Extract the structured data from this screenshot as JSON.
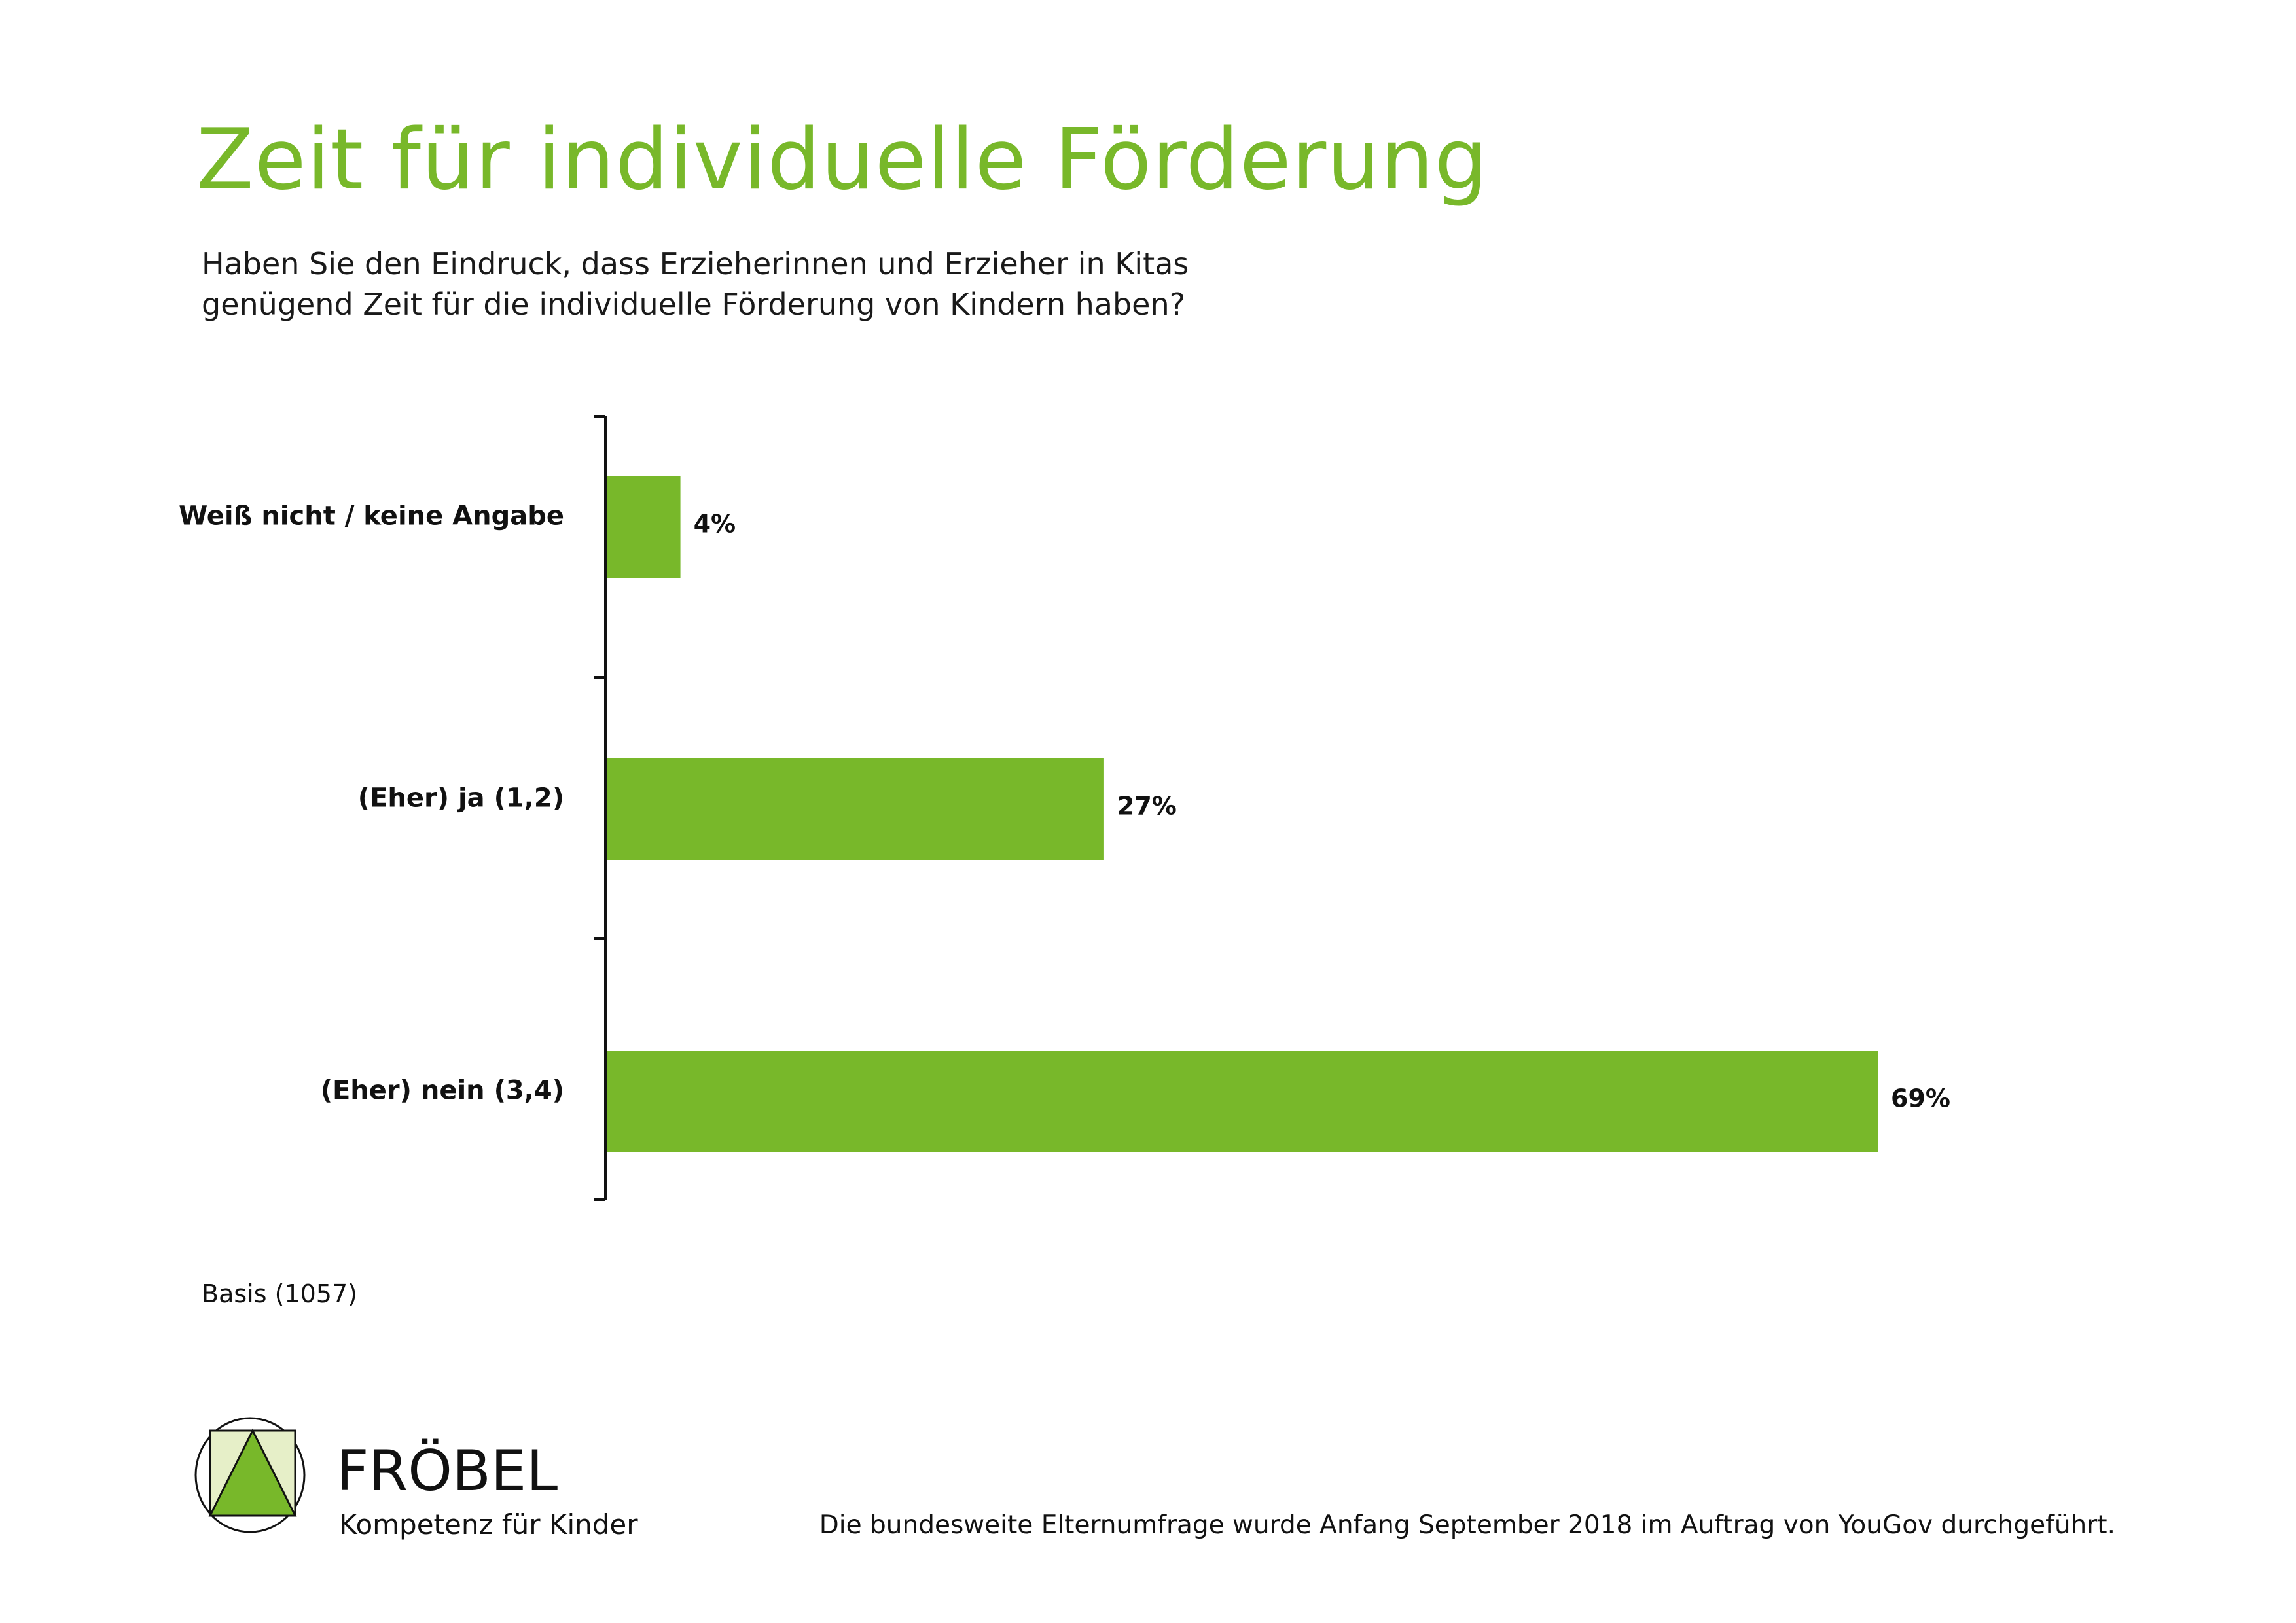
{
  "header": {
    "title": "Zeit für individuelle Förderung",
    "subtitle_lines": [
      "Haben Sie den Eindruck, dass Erzieherinnen und Erzieher in Kitas",
      "genügend Zeit für die individuelle Förderung von Kindern haben?"
    ]
  },
  "chart_data": {
    "type": "bar",
    "orientation": "horizontal",
    "categories": [
      "Weiß nicht / keine Angabe",
      "(Eher) ja (1,2)",
      "(Eher) nein (3,4)"
    ],
    "values": [
      4,
      27,
      69
    ],
    "value_labels": [
      "4%",
      "27%",
      "69%"
    ],
    "unit": "%",
    "xlim": [
      0,
      69
    ],
    "grid": false,
    "bar_color": "#78b82a"
  },
  "notes": {
    "basis": "Basis (1057)",
    "footer": "Die bundesweite Elternumfrage wurde Anfang September 2018 im Auftrag von YouGov durchgeführt."
  },
  "logo": {
    "brand": "FRÖBEL",
    "tagline": "Kompetenz für Kinder",
    "colors": {
      "triangle": "#78b82a",
      "square": "#e6efc8"
    }
  },
  "colors": {
    "accent": "#78b82a"
  }
}
